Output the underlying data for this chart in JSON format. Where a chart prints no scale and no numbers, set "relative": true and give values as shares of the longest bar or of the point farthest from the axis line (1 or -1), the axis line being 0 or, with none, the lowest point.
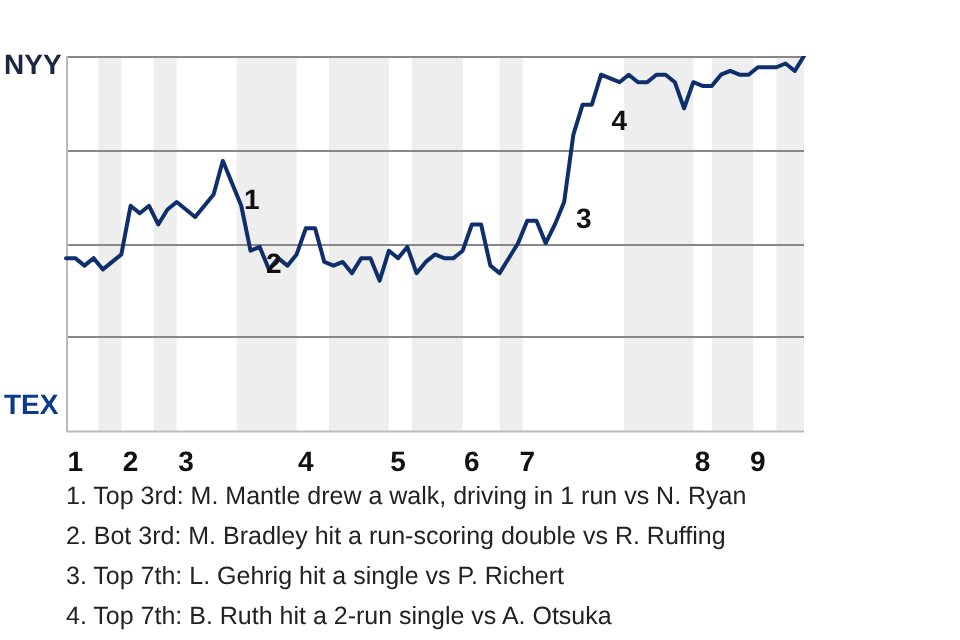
{
  "chart_data": {
    "type": "line",
    "relative": true,
    "categories": [
      null,
      "1",
      null,
      null,
      null,
      null,
      null,
      "2",
      null,
      null,
      null,
      null,
      null,
      "3",
      null,
      null,
      null,
      null,
      null,
      null,
      null,
      null,
      null,
      null,
      null,
      null,
      "4",
      null,
      null,
      null,
      null,
      null,
      null,
      null,
      null,
      null,
      "5",
      null,
      null,
      null,
      null,
      null,
      null,
      null,
      "6",
      null,
      null,
      null,
      null,
      null,
      "7",
      null,
      null,
      null,
      null,
      null,
      null,
      null,
      null,
      null,
      null,
      null,
      null,
      null,
      null,
      null,
      null,
      null,
      null,
      "8",
      null,
      null,
      null,
      null,
      null,
      "9",
      null,
      null,
      null,
      null,
      null
    ],
    "series": [
      {
        "color": "#0e2f6b",
        "values": [
          0.46,
          0.46,
          0.44,
          0.46,
          0.43,
          0.45,
          0.47,
          0.6,
          0.58,
          0.6,
          0.55,
          0.59,
          0.61,
          0.59,
          0.57,
          0.6,
          0.63,
          0.72,
          0.66,
          0.6,
          0.48,
          0.49,
          0.43,
          0.46,
          0.44,
          0.47,
          0.54,
          0.54,
          0.45,
          0.44,
          0.45,
          0.42,
          0.46,
          0.46,
          0.4,
          0.48,
          0.46,
          0.49,
          0.42,
          0.45,
          0.47,
          0.46,
          0.46,
          0.48,
          0.55,
          0.55,
          0.44,
          0.42,
          0.46,
          0.5,
          0.56,
          0.56,
          0.5,
          0.55,
          0.61,
          0.79,
          0.87,
          0.87,
          0.95,
          0.94,
          0.93,
          0.95,
          0.93,
          0.93,
          0.95,
          0.95,
          0.93,
          0.86,
          0.93,
          0.92,
          0.92,
          0.95,
          0.96,
          0.95,
          0.95,
          0.97,
          0.97,
          0.97,
          0.98,
          0.96,
          1
        ]
      }
    ],
    "grid": "y",
    "legend": false,
    "marker": "none",
    "line_style": "solid",
    "annotations": [
      "NYY",
      "TEX",
      "1",
      "2",
      "3",
      "4",
      "1. Top 3rd: M. Mantle drew a walk, driving in 1 run vs N. Ryan",
      "2. Bot 3rd: M. Bradley hit a run-scoring double vs R. Ruffing",
      "3. Top 7th: L. Gehrig hit a single vs P. Richert",
      "4. Top 7th: B. Ruth hit a 2-run single vs A. Otsuka"
    ]
  }
}
